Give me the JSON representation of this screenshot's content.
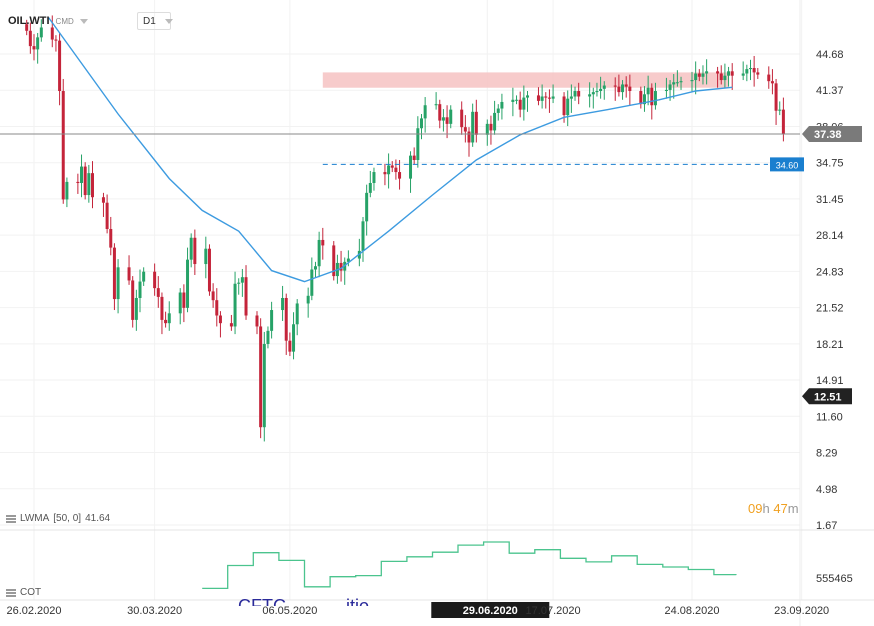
{
  "toolbar": {
    "symbol": "OIL.WTI",
    "symbol_type": "CMD",
    "timeframe": "D1"
  },
  "indicators": {
    "lwma": {
      "name": "LWMA",
      "params": "[50, 0]",
      "value": "41.64"
    },
    "cot": {
      "name": "COT",
      "value": "555465"
    }
  },
  "timer": {
    "hours": "09",
    "h": "h",
    "minutes": "47",
    "m": "m"
  },
  "bottom_text": "CFTC ... ... ...itio ...",
  "colors": {
    "up": "#26a267",
    "down": "#c4243a",
    "ma": "#3d9be0",
    "cot": "#4bc48e",
    "zone": "#f6c5c5",
    "price_badge": "#7a7a7a",
    "level_badge": "#1a7fcf",
    "dark_badge": "#222222"
  },
  "chart_data": {
    "type": "candlestick",
    "x_ticks": [
      {
        "label": "26.02.2020",
        "date": "2020-02-26"
      },
      {
        "label": "30.03.2020",
        "date": "2020-03-30"
      },
      {
        "label": "06.05.2020",
        "date": "2020-05-06"
      },
      {
        "label": "29.06.2020",
        "date": "2020-06-29",
        "highlight": true
      },
      {
        "label": "17.07.2020",
        "date": "2020-07-17"
      },
      {
        "label": "24.08.2020",
        "date": "2020-08-24"
      },
      {
        "label": "23.09.2020",
        "date": "2020-09-23"
      }
    ],
    "y_ticks": [
      44.68,
      41.37,
      38.06,
      34.75,
      31.45,
      28.14,
      24.83,
      21.52,
      18.21,
      14.91,
      11.6,
      8.29,
      4.98,
      1.67
    ],
    "ylim": [
      1.67,
      44.68
    ],
    "current_price": 37.38,
    "level_line": 34.6,
    "marker_price": 12.51,
    "resistance_zone": {
      "low": 41.6,
      "high": 43.0,
      "from": "2020-05-15",
      "to": "2020-09-03"
    },
    "close": [
      46.8,
      45.4,
      45.1,
      46.2,
      47.1,
      46.0,
      45.9,
      41.3,
      31.4,
      33.0,
      32.9,
      34.4,
      31.8,
      33.8,
      31.6,
      31.1,
      28.7,
      27.0,
      22.3,
      25.2,
      24.0,
      20.4,
      22.4,
      23.9,
      24.8,
      23.3,
      22.5,
      20.4,
      20.1,
      21.0,
      22.9,
      21.5,
      25.9,
      27.9,
      25.5,
      26.9,
      23.0,
      22.2,
      20.8,
      20.1,
      19.8,
      23.7,
      23.8,
      24.3,
      20.8,
      19.8,
      10.6,
      18.2,
      19.4,
      21.3,
      22.4,
      18.5,
      17.5,
      20.0,
      21.9,
      22.6,
      25.0,
      25.3,
      27.7,
      27.2,
      24.4,
      25.6,
      24.9,
      25.7,
      26.0,
      26.7,
      29.4,
      32.0,
      32.9,
      33.9,
      33.7,
      34.5,
      34.3,
      33.9,
      33.3,
      35.4,
      35.0,
      37.9,
      38.8,
      40.0,
      40.1,
      38.6,
      38.9,
      38.3,
      39.6,
      38.0,
      37.6,
      36.6,
      39.4,
      37.3,
      38.3,
      37.7,
      39.3,
      39.7,
      40.3,
      40.5,
      40.5,
      39.6,
      40.7,
      40.9,
      40.4,
      40.8,
      40.7,
      40.6,
      40.8,
      39.1,
      40.6,
      40.8,
      41.3,
      40.8,
      41.0,
      41.2,
      41.3,
      41.5,
      41.8,
      41.7,
      41.2,
      41.9,
      41.7,
      41.3,
      40.1,
      41.0,
      41.6,
      40.0,
      41.3,
      41.4,
      41.9,
      42.1,
      42.1,
      42.2,
      42.3,
      42.9,
      42.6,
      42.9,
      43.1,
      42.9,
      42.3,
      42.7,
      43.1,
      42.7,
      42.9,
      43.3,
      43.4,
      43.0,
      42.8,
      42.2,
      42.0,
      39.5,
      39.6,
      37.4
    ],
    "ma_series": [
      {
        "date": "2020-03-01",
        "value": 48.0
      },
      {
        "date": "2020-03-20",
        "value": 39.2
      },
      {
        "date": "2020-04-03",
        "value": 33.3
      },
      {
        "date": "2020-04-12",
        "value": 30.4
      },
      {
        "date": "2020-04-22",
        "value": 28.5
      },
      {
        "date": "2020-05-01",
        "value": 24.9
      },
      {
        "date": "2020-05-10",
        "value": 23.9
      },
      {
        "date": "2020-05-20",
        "value": 25.1
      },
      {
        "date": "2020-06-02",
        "value": 28.5
      },
      {
        "date": "2020-06-14",
        "value": 31.8
      },
      {
        "date": "2020-06-26",
        "value": 35.0
      },
      {
        "date": "2020-07-08",
        "value": 37.3
      },
      {
        "date": "2020-07-20",
        "value": 38.9
      },
      {
        "date": "2020-08-01",
        "value": 39.6
      },
      {
        "date": "2020-08-15",
        "value": 40.5
      },
      {
        "date": "2020-08-25",
        "value": 41.3
      },
      {
        "date": "2020-09-04",
        "value": 41.64
      }
    ],
    "cot_series": [
      {
        "date": "2020-04-12",
        "value": 0.15
      },
      {
        "date": "2020-04-19",
        "value": 0.6
      },
      {
        "date": "2020-04-26",
        "value": 0.85
      },
      {
        "date": "2020-05-03",
        "value": 0.7
      },
      {
        "date": "2020-05-10",
        "value": 0.18
      },
      {
        "date": "2020-05-17",
        "value": 0.38
      },
      {
        "date": "2020-05-24",
        "value": 0.4
      },
      {
        "date": "2020-05-31",
        "value": 0.68
      },
      {
        "date": "2020-06-07",
        "value": 0.77
      },
      {
        "date": "2020-06-14",
        "value": 0.86
      },
      {
        "date": "2020-06-21",
        "value": 1.0
      },
      {
        "date": "2020-06-28",
        "value": 1.06
      },
      {
        "date": "2020-07-05",
        "value": 0.84
      },
      {
        "date": "2020-07-12",
        "value": 0.91
      },
      {
        "date": "2020-07-19",
        "value": 0.74
      },
      {
        "date": "2020-07-26",
        "value": 0.67
      },
      {
        "date": "2020-08-02",
        "value": 0.79
      },
      {
        "date": "2020-08-09",
        "value": 0.62
      },
      {
        "date": "2020-08-16",
        "value": 0.57
      },
      {
        "date": "2020-08-23",
        "value": 0.52
      },
      {
        "date": "2020-08-30",
        "value": 0.42
      },
      {
        "date": "2020-09-05",
        "value": 0.41
      }
    ]
  }
}
